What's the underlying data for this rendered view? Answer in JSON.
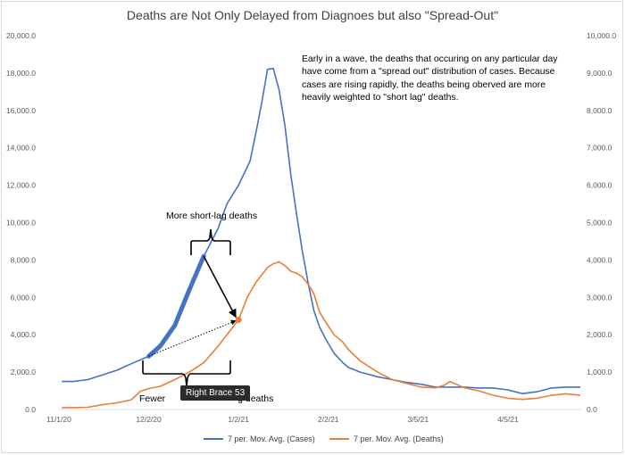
{
  "chart_data": {
    "type": "line",
    "title": "Deaths are Not Only Delayed from Diagnoes but also \"Spread-Out\"",
    "x_tick_labels": [
      "11/1/20",
      "12/2/20",
      "1/2/21",
      "2/2/21",
      "3/5/21",
      "4/5/21"
    ],
    "x_tick_days": [
      0,
      31,
      62,
      93,
      124,
      155
    ],
    "x_range_days": [
      0,
      180
    ],
    "y_left": {
      "range": [
        0,
        20000
      ],
      "step": 2000,
      "tick_labels": [
        "0.0",
        "2,000.0",
        "4,000.0",
        "6,000.0",
        "8,000.0",
        "10,000.0",
        "12,000.0",
        "14,000.0",
        "16,000.0",
        "18,000.0",
        "20,000.0"
      ]
    },
    "y_right": {
      "range": [
        0,
        10000
      ],
      "step": 1000,
      "tick_labels": [
        "0.0",
        "1,000.0",
        "2,000.0",
        "3,000.0",
        "4,000.0",
        "5,000.0",
        "6,000.0",
        "7,000.0",
        "8,000.0",
        "9,000.0",
        "10,000.0"
      ]
    },
    "series": [
      {
        "name": "7 per. Mov. Avg. (Cases)",
        "axis": "left",
        "color": "#4472c4",
        "x": [
          1,
          5,
          10,
          15,
          20,
          25,
          28,
          31,
          35,
          40,
          45,
          50,
          55,
          58,
          62,
          66,
          68,
          70,
          72,
          74,
          76,
          78,
          80,
          82,
          84,
          86,
          88,
          90,
          92,
          95,
          98,
          100,
          104,
          110,
          115,
          120,
          125,
          130,
          135,
          140,
          145,
          150,
          155,
          160,
          165,
          170,
          175,
          180
        ],
        "y": [
          1500,
          1500,
          1600,
          1850,
          2100,
          2450,
          2650,
          2850,
          3400,
          4500,
          6400,
          8200,
          9700,
          11000,
          12000,
          13300,
          14800,
          16400,
          18200,
          18250,
          17100,
          15200,
          12600,
          10500,
          8500,
          6800,
          5300,
          4400,
          3800,
          3000,
          2500,
          2250,
          2000,
          1750,
          1600,
          1450,
          1350,
          1200,
          1200,
          1200,
          1150,
          1150,
          1050,
          850,
          950,
          1150,
          1200,
          1200
        ]
      },
      {
        "name": "7 per. Mov. Avg. (Deaths)",
        "axis": "right",
        "color": "#ed7d31",
        "x": [
          1,
          5,
          10,
          15,
          20,
          25,
          28,
          31,
          35,
          40,
          45,
          50,
          55,
          58,
          62,
          65,
          68,
          70,
          72,
          74,
          76,
          78,
          80,
          82,
          84,
          86,
          88,
          90,
          92,
          95,
          98,
          100,
          104,
          110,
          115,
          120,
          125,
          130,
          133,
          135,
          137,
          140,
          145,
          150,
          155,
          160,
          165,
          170,
          175,
          180
        ],
        "y": [
          50,
          50,
          60,
          130,
          180,
          260,
          480,
          560,
          620,
          800,
          1000,
          1250,
          1700,
          2000,
          2400,
          3000,
          3400,
          3600,
          3800,
          3900,
          3950,
          3850,
          3700,
          3650,
          3550,
          3350,
          3100,
          2600,
          2350,
          2000,
          1800,
          1600,
          1300,
          1000,
          800,
          700,
          600,
          580,
          650,
          750,
          680,
          580,
          500,
          380,
          300,
          270,
          300,
          380,
          420,
          380
        ]
      }
    ],
    "legend": [
      "7 per. Mov. Avg. (Cases)",
      "7 per. Mov. Avg. (Deaths)"
    ],
    "legend_position": "bottom"
  },
  "annotations": {
    "main_text": "Early in a wave, the deaths that occuring on any particular day have come from a \"spread out\" distribution of cases. Because cases are rising rapidly, the deaths being oberved are more heavily weighted to \"short lag\" deaths.",
    "short_lag": "More short-lag deaths",
    "fewer_prefix": "Fewer ",
    "fewer_suffix": "g deaths",
    "tooltip": "Right Brace 53"
  }
}
